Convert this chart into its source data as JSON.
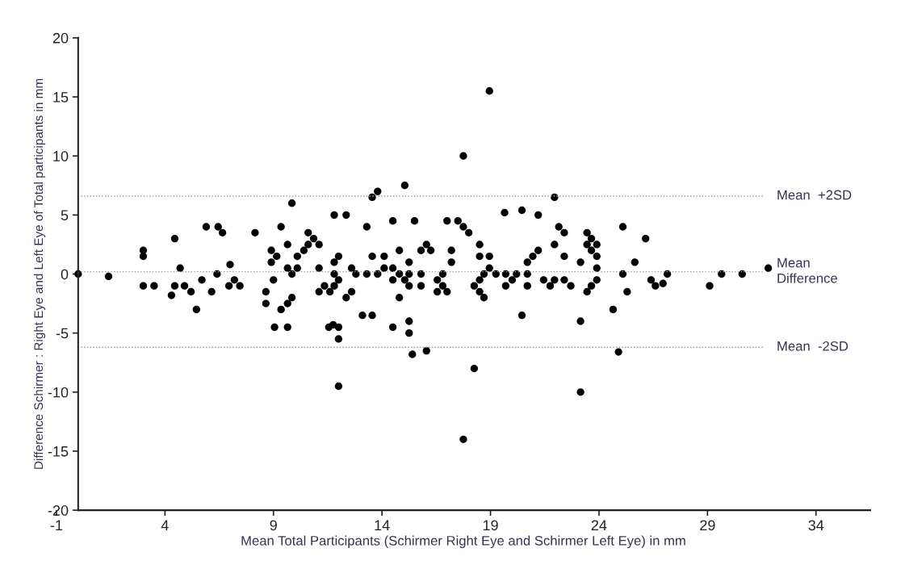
{
  "chart_data": {
    "type": "scatter",
    "xlabel": "Mean Total Participants (Schirmer Right Eye and Schirmer Left Eye) in mm",
    "ylabel": "Difference Schirmer : Right Eye and Left Eye of Total participants in mm",
    "xlim": [
      -1,
      36.5
    ],
    "ylim": [
      -20,
      20
    ],
    "xticks": [
      -1,
      4,
      9,
      14,
      19,
      24,
      29,
      34
    ],
    "yticks": [
      -20,
      -15,
      -10,
      -5,
      0,
      5,
      10,
      15,
      20
    ],
    "grid": false,
    "marker": "circle",
    "ref_lines": [
      {
        "axis": "y",
        "value": 6.6,
        "label": "Mean  +2SD",
        "color": "#9a9a9a",
        "line_style": "dotted"
      },
      {
        "axis": "y",
        "value": 0.2,
        "label": "Mean\nDifference",
        "color": "#9a9a9a",
        "line_style": "dotted"
      },
      {
        "axis": "y",
        "value": -6.2,
        "label": "Mean  -2SD",
        "color": "#9a9a9a",
        "line_style": "dotted"
      }
    ],
    "series": [
      {
        "color": "#000000",
        "x": [
          0,
          1.4,
          3,
          3,
          3,
          3.5,
          4.45,
          4.7,
          4.3,
          4.45,
          4.9,
          5.2,
          5.45,
          5.7,
          5.9,
          6.15,
          6.45,
          6.65,
          6.4,
          7.0,
          6.95,
          7.2,
          7.45,
          8.15,
          8.65,
          8.65,
          8.9,
          8.9,
          9.0,
          9.15,
          9.05,
          9.35,
          9.35,
          9.65,
          9.65,
          9.65,
          9.65,
          9.85,
          9.85,
          9.85,
          10.1,
          10.1,
          10.4,
          10.6,
          10.6,
          10.85,
          11.1,
          11.1,
          11.1,
          11.35,
          11.6,
          11.55,
          11.75,
          12.0,
          12.0,
          12.0,
          11.8,
          12.35,
          11.8,
          12.0,
          11.8,
          11.8,
          12.0,
          12.35,
          12.6,
          12.6,
          12.8,
          13.1,
          13.55,
          13.3,
          13.3,
          13.55,
          13.8,
          13.55,
          13.8,
          14.1,
          14.1,
          14.5,
          14.5,
          14.5,
          14.5,
          14.8,
          14.8,
          14.8,
          15.05,
          15.05,
          15.25,
          15.25,
          15.25,
          15.25,
          15.25,
          15.4,
          15.5,
          15.8,
          16.05,
          16.25,
          15.8,
          15.8,
          16.05,
          16.55,
          16.8,
          16.8,
          16.55,
          17.0,
          17.0,
          17.2,
          17.2,
          18.95,
          17.75,
          17.75,
          18.25,
          23.15,
          21.95,
          17.5,
          17.75,
          18.0,
          18.5,
          18.5,
          18.95,
          18.95,
          18.7,
          19.25,
          18.5,
          18.25,
          18.5,
          18.7,
          19.65,
          20.45,
          21.2,
          19.7,
          19.7,
          20.0,
          20.2,
          20.7,
          20.7,
          20.7,
          20.95,
          21.2,
          20.45,
          21.45,
          21.75,
          21.95,
          21.95,
          22.15,
          22.4,
          22.4,
          22.4,
          22.7,
          23.15,
          23.15,
          23.45,
          23.65,
          23.45,
          23.9,
          23.65,
          23.9,
          23.9,
          23.9,
          23.65,
          23.45,
          24.65,
          24.9,
          25.1,
          25.1,
          25.3,
          26.15,
          25.65,
          26.4,
          26.6,
          26.95,
          27.15,
          29.1,
          29.65,
          30.6,
          31.8
        ],
        "values": [
          0,
          -0.2,
          2,
          1.5,
          -1,
          -1,
          3,
          0.5,
          -1.8,
          -1,
          -1,
          -1.5,
          -3,
          -0.5,
          4,
          -1.5,
          4,
          3.5,
          0,
          0.8,
          -1,
          -0.5,
          -1,
          3.5,
          -1.5,
          -2.5,
          2,
          1,
          -0.5,
          1.5,
          -4.5,
          4,
          -3,
          2.5,
          0.5,
          -2.5,
          -4.5,
          6,
          0,
          -2,
          1.5,
          0.5,
          2,
          3.5,
          2.5,
          3,
          2.5,
          0.5,
          -1.5,
          -1,
          -1.5,
          -4.5,
          -4.3,
          -4.5,
          -5.5,
          -9.5,
          5,
          5,
          1,
          1.5,
          0,
          -1,
          -0.5,
          -2,
          -1.5,
          0.5,
          0,
          -3.5,
          -3.5,
          4,
          0,
          6.5,
          7,
          1.5,
          0,
          1.5,
          0.5,
          4.5,
          0.5,
          -0.5,
          -4.5,
          2,
          0,
          -2,
          7.5,
          -0.5,
          1,
          0,
          -1,
          -4,
          -5,
          -6.8,
          4.5,
          2,
          2.5,
          2,
          0,
          -1,
          -6.5,
          -0.5,
          0,
          -1,
          -1.5,
          4.5,
          -1.5,
          2,
          1,
          15.5,
          10,
          -14,
          -8,
          -10,
          6.5,
          4.5,
          4,
          3.5,
          2.5,
          1.5,
          1.5,
          0.5,
          0,
          0,
          -0.5,
          -1,
          -1.5,
          -2,
          5.2,
          5.4,
          5,
          0,
          -1,
          -0.5,
          0,
          0,
          -1,
          1,
          1.5,
          2,
          -3.5,
          -0.5,
          -1,
          -0.5,
          2.5,
          4,
          3.5,
          1.5,
          -0.5,
          -1,
          1,
          -4,
          3.5,
          3,
          2.5,
          2.5,
          2,
          1.5,
          0.5,
          -0.5,
          -1,
          -1.5,
          -3,
          -6.6,
          4,
          0,
          -1.5,
          3,
          1,
          -0.5,
          -1,
          -0.8,
          0,
          -1,
          0,
          0,
          0.5
        ]
      }
    ]
  }
}
